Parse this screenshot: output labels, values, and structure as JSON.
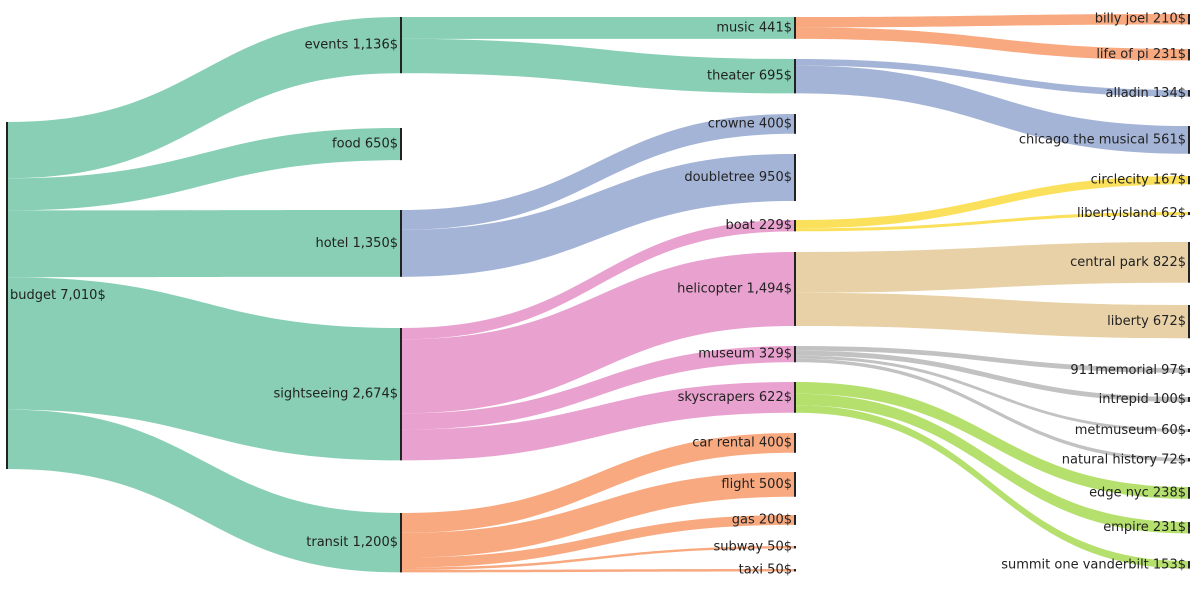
{
  "chart_data": {
    "type": "sankey",
    "currency_suffix": "$",
    "colors": {
      "green": "#88cfb6",
      "blue": "#a4b4d6",
      "pink": "#e9a2cf",
      "orange": "#f8a97f",
      "yellow": "#fbe05b",
      "tan": "#e8d1a7",
      "grey": "#c2c2c2",
      "lime": "#b5e06e",
      "node_bar": "#222222"
    },
    "nodes": [
      {
        "id": "budget",
        "label": "budget",
        "value": 7010,
        "display": "7,010"
      },
      {
        "id": "events",
        "label": "events",
        "value": 1136,
        "display": "1,136"
      },
      {
        "id": "food",
        "label": "food",
        "value": 650,
        "display": "650"
      },
      {
        "id": "hotel",
        "label": "hotel",
        "value": 1350,
        "display": "1,350"
      },
      {
        "id": "sightseeing",
        "label": "sightseeing",
        "value": 2674,
        "display": "2,674"
      },
      {
        "id": "transit",
        "label": "transit",
        "value": 1200,
        "display": "1,200"
      },
      {
        "id": "music",
        "label": "music",
        "value": 441,
        "display": "441"
      },
      {
        "id": "theater",
        "label": "theater",
        "value": 695,
        "display": "695"
      },
      {
        "id": "crowne",
        "label": "crowne",
        "value": 400,
        "display": "400"
      },
      {
        "id": "doubletree",
        "label": "doubletree",
        "value": 950,
        "display": "950"
      },
      {
        "id": "boat",
        "label": "boat",
        "value": 229,
        "display": "229"
      },
      {
        "id": "helicopter",
        "label": "helicopter",
        "value": 1494,
        "display": "1,494"
      },
      {
        "id": "museum",
        "label": "museum",
        "value": 329,
        "display": "329"
      },
      {
        "id": "skyscrapers",
        "label": "skyscrapers",
        "value": 622,
        "display": "622"
      },
      {
        "id": "car_rental",
        "label": "car rental",
        "value": 400,
        "display": "400"
      },
      {
        "id": "flight",
        "label": "flight",
        "value": 500,
        "display": "500"
      },
      {
        "id": "gas",
        "label": "gas",
        "value": 200,
        "display": "200"
      },
      {
        "id": "subway",
        "label": "subway",
        "value": 50,
        "display": "50"
      },
      {
        "id": "taxi",
        "label": "taxi",
        "value": 50,
        "display": "50"
      },
      {
        "id": "billy_joel",
        "label": "billy joel",
        "value": 210,
        "display": "210"
      },
      {
        "id": "life_of_pi",
        "label": "life of pi",
        "value": 231,
        "display": "231"
      },
      {
        "id": "alladin",
        "label": "alladin",
        "value": 134,
        "display": "134"
      },
      {
        "id": "chicago",
        "label": "chicago the musical",
        "value": 561,
        "display": "561"
      },
      {
        "id": "circlecity",
        "label": "circlecity",
        "value": 167,
        "display": "167"
      },
      {
        "id": "libertyisland",
        "label": "libertyisland",
        "value": 62,
        "display": "62"
      },
      {
        "id": "central_park",
        "label": "central park",
        "value": 822,
        "display": "822"
      },
      {
        "id": "liberty",
        "label": "liberty",
        "value": 672,
        "display": "672"
      },
      {
        "id": "911memorial",
        "label": "911memorial",
        "value": 97,
        "display": "97"
      },
      {
        "id": "intrepid",
        "label": "intrepid",
        "value": 100,
        "display": "100"
      },
      {
        "id": "metmuseum",
        "label": "metmuseum",
        "value": 60,
        "display": "60"
      },
      {
        "id": "natural_history",
        "label": "natural history",
        "value": 72,
        "display": "72"
      },
      {
        "id": "edge_nyc",
        "label": "edge nyc",
        "value": 238,
        "display": "238"
      },
      {
        "id": "empire",
        "label": "empire",
        "value": 231,
        "display": "231"
      },
      {
        "id": "summit",
        "label": "summit one vanderbilt",
        "value": 153,
        "display": "153"
      }
    ],
    "links": [
      {
        "source": "budget",
        "target": "events",
        "value": 1136,
        "color": "green"
      },
      {
        "source": "budget",
        "target": "food",
        "value": 650,
        "color": "green"
      },
      {
        "source": "budget",
        "target": "hotel",
        "value": 1350,
        "color": "green"
      },
      {
        "source": "budget",
        "target": "sightseeing",
        "value": 2674,
        "color": "green"
      },
      {
        "source": "budget",
        "target": "transit",
        "value": 1200,
        "color": "green"
      },
      {
        "source": "events",
        "target": "music",
        "value": 441,
        "color": "green"
      },
      {
        "source": "events",
        "target": "theater",
        "value": 695,
        "color": "green"
      },
      {
        "source": "hotel",
        "target": "crowne",
        "value": 400,
        "color": "blue"
      },
      {
        "source": "hotel",
        "target": "doubletree",
        "value": 950,
        "color": "blue"
      },
      {
        "source": "sightseeing",
        "target": "boat",
        "value": 229,
        "color": "pink"
      },
      {
        "source": "sightseeing",
        "target": "helicopter",
        "value": 1494,
        "color": "pink"
      },
      {
        "source": "sightseeing",
        "target": "museum",
        "value": 329,
        "color": "pink"
      },
      {
        "source": "sightseeing",
        "target": "skyscrapers",
        "value": 622,
        "color": "pink"
      },
      {
        "source": "transit",
        "target": "car_rental",
        "value": 400,
        "color": "orange"
      },
      {
        "source": "transit",
        "target": "flight",
        "value": 500,
        "color": "orange"
      },
      {
        "source": "transit",
        "target": "gas",
        "value": 200,
        "color": "orange"
      },
      {
        "source": "transit",
        "target": "subway",
        "value": 50,
        "color": "orange"
      },
      {
        "source": "transit",
        "target": "taxi",
        "value": 50,
        "color": "orange"
      },
      {
        "source": "music",
        "target": "billy_joel",
        "value": 210,
        "color": "orange"
      },
      {
        "source": "music",
        "target": "life_of_pi",
        "value": 231,
        "color": "orange"
      },
      {
        "source": "theater",
        "target": "alladin",
        "value": 134,
        "color": "blue"
      },
      {
        "source": "theater",
        "target": "chicago",
        "value": 561,
        "color": "blue"
      },
      {
        "source": "boat",
        "target": "circlecity",
        "value": 167,
        "color": "yellow"
      },
      {
        "source": "boat",
        "target": "libertyisland",
        "value": 62,
        "color": "yellow"
      },
      {
        "source": "helicopter",
        "target": "central_park",
        "value": 822,
        "color": "tan"
      },
      {
        "source": "helicopter",
        "target": "liberty",
        "value": 672,
        "color": "tan"
      },
      {
        "source": "museum",
        "target": "911memorial",
        "value": 97,
        "color": "grey"
      },
      {
        "source": "museum",
        "target": "intrepid",
        "value": 100,
        "color": "grey"
      },
      {
        "source": "museum",
        "target": "metmuseum",
        "value": 60,
        "color": "grey"
      },
      {
        "source": "museum",
        "target": "natural_history",
        "value": 72,
        "color": "grey"
      },
      {
        "source": "skyscrapers",
        "target": "edge_nyc",
        "value": 238,
        "color": "lime"
      },
      {
        "source": "skyscrapers",
        "target": "empire",
        "value": 231,
        "color": "lime"
      },
      {
        "source": "skyscrapers",
        "target": "summit",
        "value": 153,
        "color": "lime"
      }
    ]
  }
}
